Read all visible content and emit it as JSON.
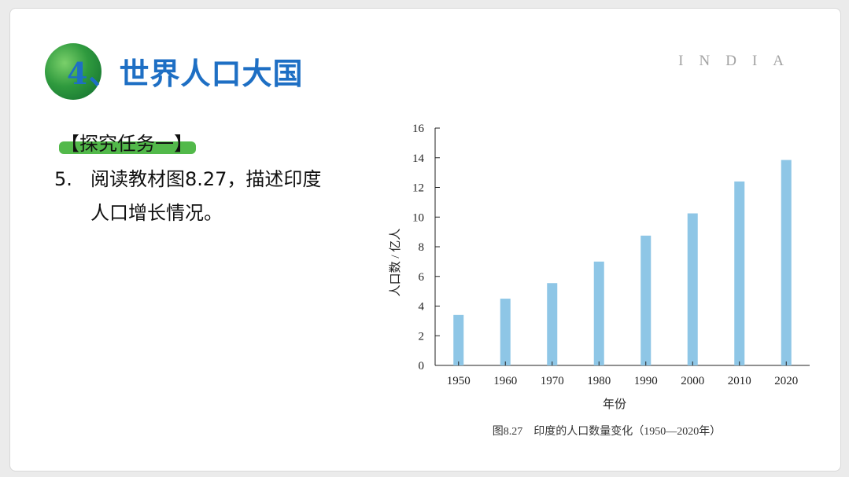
{
  "slide": {
    "title": "4、世界人口大国",
    "brand": "INDIA",
    "task_label": "【探究任务一】",
    "question_number": "5.",
    "question_line1": "阅读教材图8.27，描述印度",
    "question_line2": "人口增长情况。"
  },
  "chart_data": {
    "type": "bar",
    "title": "图8.27　印度的人口数量变化（1950—2020年）",
    "xlabel": "年份",
    "ylabel": "人口数 / 亿人",
    "categories": [
      "1950",
      "1960",
      "1970",
      "1980",
      "1990",
      "2000",
      "2010",
      "2020"
    ],
    "values": [
      3.4,
      4.5,
      5.55,
      7.0,
      8.75,
      10.25,
      12.4,
      13.85
    ],
    "ylim": [
      0,
      16
    ],
    "yticks": [
      "0",
      "2",
      "4",
      "6",
      "8",
      "10",
      "12",
      "14",
      "16"
    ],
    "bar_color": "#8ec6e6",
    "grid": false
  },
  "colors": {
    "title": "#1e6fc4",
    "accent_green": "#52b94a"
  }
}
